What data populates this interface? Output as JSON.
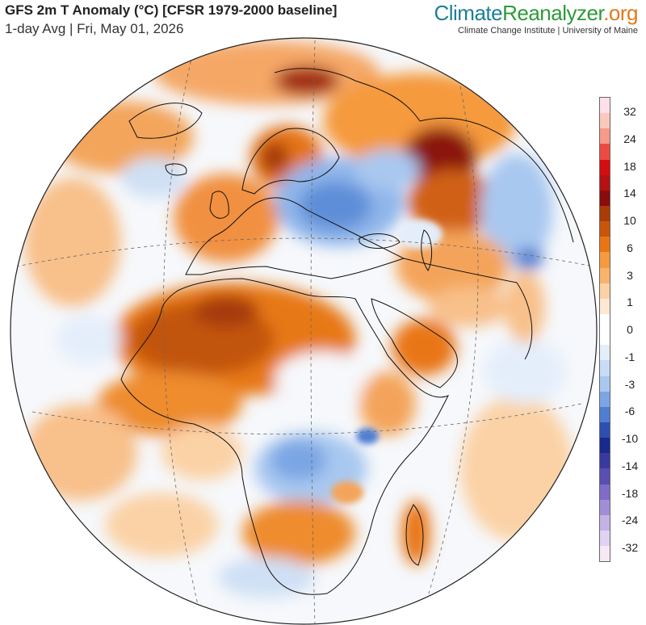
{
  "header": {
    "title": "GFS 2m T Anomaly (°C) [CFSR 1979-2000 baseline]",
    "subtitle": "1-day Avg | Fri, May 01, 2026"
  },
  "brand": {
    "part1": "Climate",
    "part2": "Reanalyzer",
    "part3": ".org",
    "subtitle": "Climate Change Institute | University of Maine",
    "colors": {
      "climate": "#1e7f96",
      "reanalyzer": "#2e9a3a",
      "org": "#e07a1a"
    }
  },
  "colorbar": {
    "unit": "°C",
    "segments": [
      "#fde0e8",
      "#fbc8bc",
      "#f69a8a",
      "#ee4a44",
      "#d40d12",
      "#b41212",
      "#8a0c0c",
      "#a83c06",
      "#c8560a",
      "#e97612",
      "#f59a3e",
      "#f8b46c",
      "#fbd2a6",
      "#fde8d2",
      "#ffffff",
      "#ffffff",
      "#e4eefb",
      "#c8dcf6",
      "#a9c8f0",
      "#7aa6e4",
      "#4f7ed0",
      "#2e4fb0",
      "#1a2a8c",
      "#3a3a9e",
      "#5a4eb0",
      "#7e6cc6",
      "#a38ed6",
      "#c4b2e6",
      "#e0d2f2",
      "#f6e8f4"
    ],
    "labels": [
      "32",
      "24",
      "18",
      "14",
      "10",
      "6",
      "3",
      "1",
      "0",
      "-1",
      "-3",
      "-6",
      "-10",
      "-14",
      "-18",
      "-24",
      "-32"
    ]
  },
  "map": {
    "projection": "orthographic",
    "region": "Europe, Africa, Middle East",
    "colors": {
      "ocean_neutral": "#f6f8fb",
      "warm_strong": "#c25410",
      "warm_mid": "#ee8c2e",
      "warm_light": "#f8c08a",
      "cool_light": "#cfe0f5",
      "cool_mid": "#8fb6ea",
      "cool_strong": "#4f7ed0",
      "hot_spot": "#8a1410"
    }
  }
}
